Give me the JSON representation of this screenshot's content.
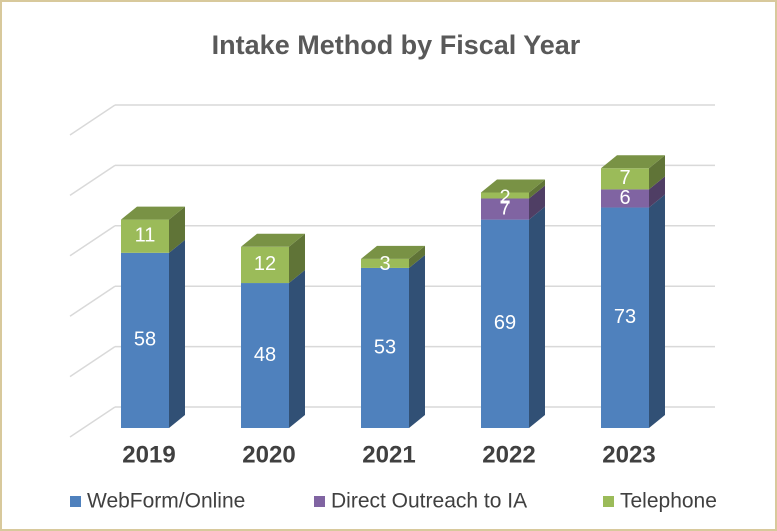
{
  "chart_data": {
    "type": "bar3d_stacked",
    "title": "Intake Method by Fiscal Year",
    "categories": [
      "2019",
      "2020",
      "2021",
      "2022",
      "2023"
    ],
    "series": [
      {
        "name": "WebForm/Online",
        "color": "#4f81bd",
        "values": [
          58,
          48,
          53,
          69,
          73
        ]
      },
      {
        "name": "Direct Outreach to IA",
        "color": "#8064a2",
        "values": [
          null,
          null,
          null,
          7,
          6
        ]
      },
      {
        "name": "Telephone",
        "color": "#9bbb59",
        "values": [
          11,
          12,
          3,
          2,
          7
        ]
      }
    ],
    "ylim": [
      0,
      100
    ],
    "yticks": [
      0,
      20,
      40,
      60,
      80,
      100
    ],
    "grid": true,
    "legend": "bottom"
  }
}
